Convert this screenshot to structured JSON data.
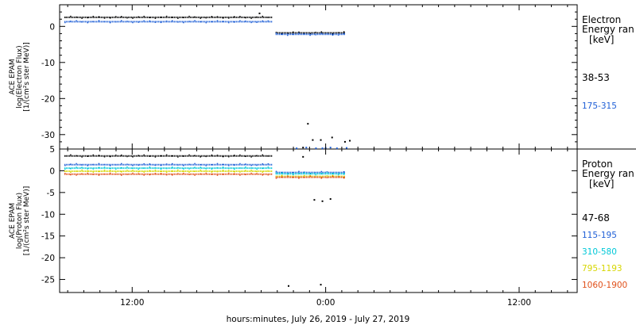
{
  "xlabel": "hours:minutes, July 26, 2019 - July 27, 2019",
  "x_ticks": [
    {
      "hour": 12,
      "label": "12:00"
    },
    {
      "hour": 24,
      "label": "0:00"
    },
    {
      "hour": 36,
      "label": "12:00"
    }
  ],
  "chart_data": [
    {
      "type": "scatter",
      "panel": "electron",
      "ylabel": [
        "ACE EPAM",
        "log(Electron Flux)",
        "[1/(cm²s ster MeV)]"
      ],
      "ylim": [
        -34,
        6
      ],
      "yticks": [
        0,
        -10,
        -20,
        -30
      ],
      "xlim_hours": [
        7.5,
        39.6
      ],
      "legend_title": [
        "Electron",
        "Energy ran",
        "[keV]"
      ],
      "series": [
        {
          "name": "38-53",
          "color": "#000000",
          "segments": [
            {
              "x": [
                7.8,
                20.7
              ],
              "y": 2.5
            },
            {
              "x": [
                20.9,
                25.2
              ],
              "y": -1.8
            }
          ],
          "outliers": [
            [
              19.9,
              3.6
            ],
            [
              22.9,
              -27
            ],
            [
              23.2,
              -31.5
            ],
            [
              23.7,
              -31.5
            ],
            [
              24.4,
              -30.8
            ],
            [
              25.2,
              -32
            ],
            [
              25.5,
              -31.7
            ],
            [
              22.6,
              -33.6
            ]
          ]
        },
        {
          "name": "175-315",
          "color": "#1f5fd6",
          "segments": [
            {
              "x": [
                7.8,
                20.7
              ],
              "y": 1.3
            },
            {
              "x": [
                20.9,
                25.2
              ],
              "y": -2.2
            }
          ],
          "outliers": [
            [
              22.2,
              -33.8
            ],
            [
              22.8,
              -33.6
            ],
            [
              23.4,
              -33.8
            ],
            [
              23.8,
              -33.8
            ],
            [
              24.3,
              -33.6
            ],
            [
              24.7,
              -33.8
            ],
            [
              25.3,
              -33.7
            ],
            [
              24.0,
              -33.7
            ]
          ]
        }
      ]
    },
    {
      "type": "scatter",
      "panel": "proton",
      "ylabel": [
        "ACE EPAM",
        "log(Proton Flux)",
        "[1/(cm²s ster MeV)]"
      ],
      "ylim": [
        -28,
        5
      ],
      "yticks": [
        5,
        0,
        -5,
        -10,
        -15,
        -20,
        -25
      ],
      "xlim_hours": [
        7.5,
        39.6
      ],
      "legend_title": [
        "Proton",
        "Energy ran",
        "[keV]"
      ],
      "series": [
        {
          "name": "47-68",
          "color": "#000000",
          "segments": [
            {
              "x": [
                7.8,
                20.7
              ],
              "y": 3.4
            }
          ],
          "outliers": [
            [
              22.6,
              3.2
            ],
            [
              23.3,
              -6.7
            ],
            [
              23.8,
              -7.0
            ],
            [
              24.3,
              -6.5
            ],
            [
              21.7,
              -26.5
            ],
            [
              23.7,
              -26.2
            ]
          ]
        },
        {
          "name": "115-195",
          "color": "#1f5fd6",
          "segments": [
            {
              "x": [
                7.8,
                20.7
              ],
              "y": 1.4
            },
            {
              "x": [
                20.9,
                25.2
              ],
              "y": -0.4
            }
          ],
          "outliers": []
        },
        {
          "name": "310-580",
          "color": "#00c8d8",
          "segments": [
            {
              "x": [
                7.8,
                20.7
              ],
              "y": 0.6
            },
            {
              "x": [
                20.9,
                25.2
              ],
              "y": -0.7
            }
          ],
          "outliers": []
        },
        {
          "name": "795-1193",
          "color": "#d6d600",
          "segments": [
            {
              "x": [
                7.8,
                20.7
              ],
              "y": -0.1
            },
            {
              "x": [
                20.9,
                25.2
              ],
              "y": -1.3
            }
          ],
          "outliers": []
        },
        {
          "name": "1060-1900",
          "color": "#e0501a",
          "segments": [
            {
              "x": [
                7.8,
                20.7
              ],
              "y": -0.8
            },
            {
              "x": [
                20.9,
                25.2
              ],
              "y": -1.5
            }
          ],
          "outliers": []
        }
      ]
    }
  ]
}
